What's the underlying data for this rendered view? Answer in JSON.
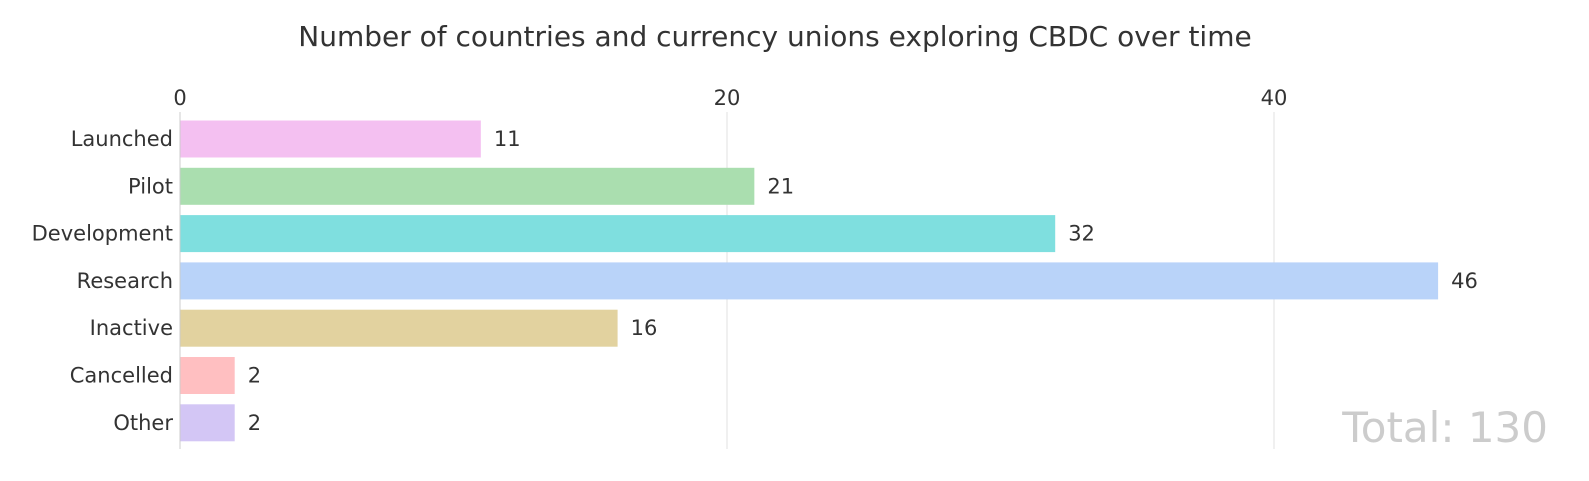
{
  "chart_data": {
    "type": "bar",
    "orientation": "horizontal",
    "title": "Number of countries and currency unions exploring CBDC over time",
    "xlabel": "",
    "ylabel": "",
    "xlim": [
      0,
      50
    ],
    "x_ticks": [
      "0",
      "20",
      "40"
    ],
    "categories": [
      "Launched",
      "Pilot",
      "Development",
      "Research",
      "Inactive",
      "Cancelled",
      "Other"
    ],
    "values": [
      11,
      21,
      32,
      46,
      16,
      2,
      2
    ],
    "colors": [
      "#f4c0f1",
      "#aadeaf",
      "#7fdfdf",
      "#b9d3f9",
      "#e2d29f",
      "#ffbfc1",
      "#d3c6f5"
    ],
    "grid": true,
    "legend": "none",
    "data_labels": true,
    "annotation": "Total: 130"
  }
}
